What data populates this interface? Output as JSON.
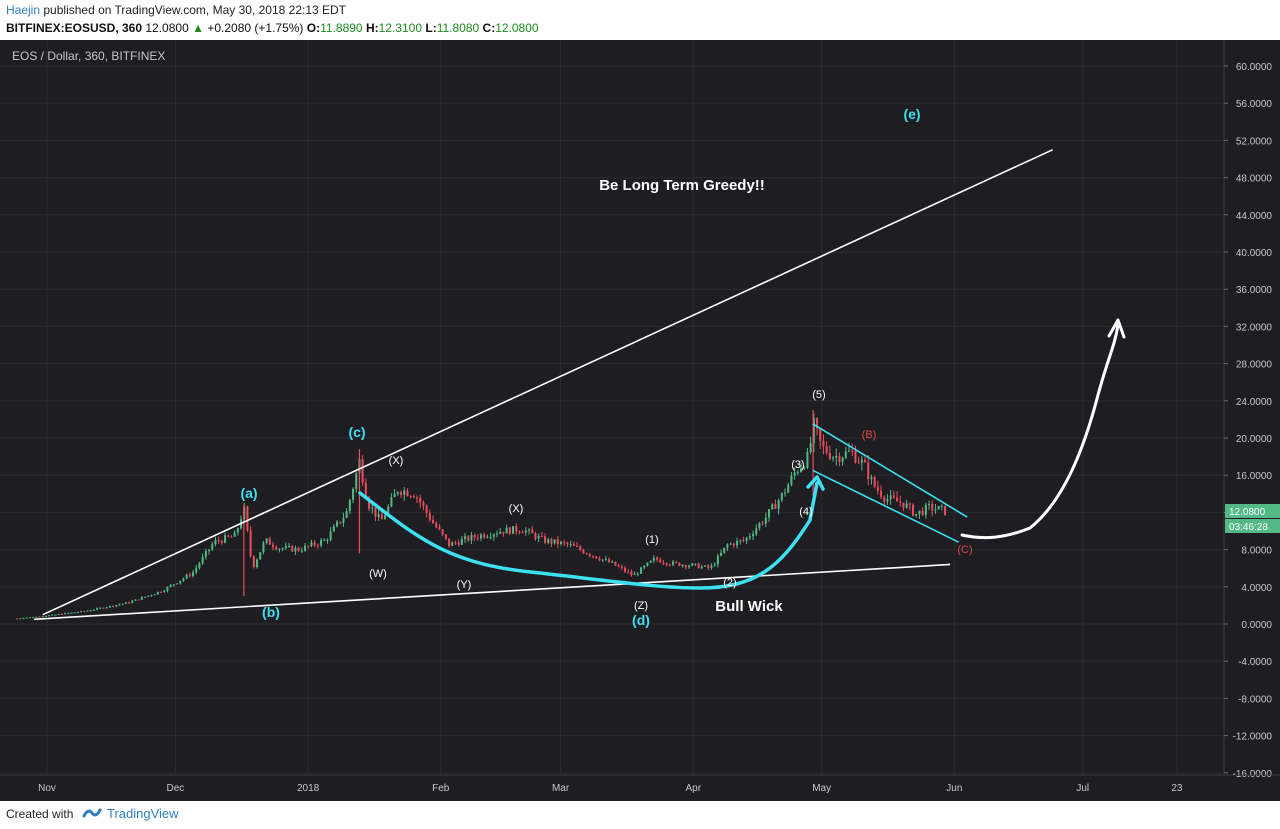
{
  "header": {
    "author": "Haejin",
    "published": "published on TradingView.com, May 30, 2018 22:13 EDT",
    "symbol": "BITFINEX:EOSUSD, 360",
    "last": "12.0800",
    "arrow": "▲",
    "change": "+0.2080 (+1.75%)",
    "o_label": "O:",
    "o": "11.8890",
    "h_label": "H:",
    "h": "12.3100",
    "l_label": "L:",
    "l": "11.8080",
    "c_label": "C:",
    "c": "12.0800"
  },
  "footer": {
    "created": "Created with",
    "brand": "TradingView"
  },
  "colors": {
    "background": "#1e1e22",
    "up": "#53b987",
    "down": "#eb4d5c",
    "cyan": "#3ce0f0",
    "white": "#ffffff",
    "red_label": "#e04444"
  },
  "chart_data": {
    "type": "line",
    "title": "EOS / Dollar, 360, BITFINEX",
    "price_scale": [
      "60.0000",
      "56.0000",
      "52.0000",
      "48.0000",
      "44.0000",
      "40.0000",
      "36.0000",
      "32.0000",
      "28.0000",
      "24.0000",
      "20.0000",
      "16.0000",
      "12.0000",
      "8.0000",
      "4.0000",
      "0.0000",
      "-4.0000",
      "-8.0000",
      "-12.0000",
      "-16.0000"
    ],
    "ylim": [
      -16,
      60
    ],
    "x_labels": [
      "Nov",
      "Dec",
      "2018",
      "Feb",
      "Mar",
      "Apr",
      "May",
      "Jun",
      "Jul",
      "23"
    ],
    "last_price_tag": "12.0800",
    "countdown_tag": "03:46:28",
    "price_series": {
      "name": "",
      "x": [
        "2017-10-25",
        "2017-11-01",
        "2017-11-10",
        "2017-11-20",
        "2017-11-28",
        "2017-12-05",
        "2017-12-10",
        "2017-12-15",
        "2017-12-17",
        "2017-12-19",
        "2017-12-22",
        "2017-12-25",
        "2017-12-30",
        "2018-01-05",
        "2018-01-10",
        "2018-01-13",
        "2018-01-15",
        "2018-01-18",
        "2018-01-22",
        "2018-01-26",
        "2018-01-30",
        "2018-02-03",
        "2018-02-06",
        "2018-02-10",
        "2018-02-15",
        "2018-02-20",
        "2018-02-25",
        "2018-03-03",
        "2018-03-08",
        "2018-03-13",
        "2018-03-18",
        "2018-03-23",
        "2018-03-27",
        "2018-04-01",
        "2018-04-05",
        "2018-04-09",
        "2018-04-13",
        "2018-04-18",
        "2018-04-22",
        "2018-04-25",
        "2018-04-28",
        "2018-04-29",
        "2018-05-01",
        "2018-05-04",
        "2018-05-08",
        "2018-05-11",
        "2018-05-13",
        "2018-05-16",
        "2018-05-20",
        "2018-05-23",
        "2018-05-26",
        "2018-05-29",
        "2018-05-30"
      ],
      "y": [
        0.6,
        0.9,
        1.4,
        2.3,
        3.6,
        5.5,
        8.8,
        9.5,
        12.5,
        6.0,
        9.0,
        8.2,
        8.0,
        9.0,
        12.0,
        17.5,
        13.0,
        11.0,
        14.5,
        14.0,
        11.0,
        8.5,
        9.0,
        9.5,
        10.0,
        10.2,
        9.0,
        8.5,
        7.5,
        6.5,
        5.2,
        7.0,
        6.5,
        6.3,
        6.0,
        8.5,
        9.0,
        11.5,
        14.0,
        16.5,
        18.0,
        21.5,
        19.0,
        18.0,
        18.5,
        17.0,
        15.0,
        13.5,
        13.0,
        11.8,
        12.5,
        12.3,
        12.08
      ]
    },
    "trend_lines": [
      {
        "from": [
          "2017-10-29",
          0.5
        ],
        "to": [
          "2018-05-31",
          6.4
        ],
        "color": "white"
      },
      {
        "from": [
          "2017-10-31",
          1.0
        ],
        "to": [
          "2018-06-24",
          51.0
        ],
        "color": "white"
      },
      {
        "from": [
          "2018-04-29",
          21.5
        ],
        "to": [
          "2018-06-04",
          11.5
        ],
        "color": "cyan"
      },
      {
        "from": [
          "2018-04-29",
          16.5
        ],
        "to": [
          "2018-06-02",
          8.8
        ],
        "color": "cyan"
      }
    ],
    "annotations": {
      "a": "(a)",
      "b": "(b)",
      "c": "(c)",
      "d": "(d)",
      "e": "(e)",
      "W": "(W)",
      "X1": "(X)",
      "Y": "(Y)",
      "X2": "(X)",
      "Z": "(Z)",
      "w1": "(1)",
      "w2": "(2)",
      "w3": "(3)",
      "w4": "(4)",
      "w5": "(5)",
      "B": "(B)",
      "C": "(C)",
      "headline": "Be Long Term Greedy!!",
      "bull_wick": "Bull Wick"
    },
    "grid": true
  }
}
